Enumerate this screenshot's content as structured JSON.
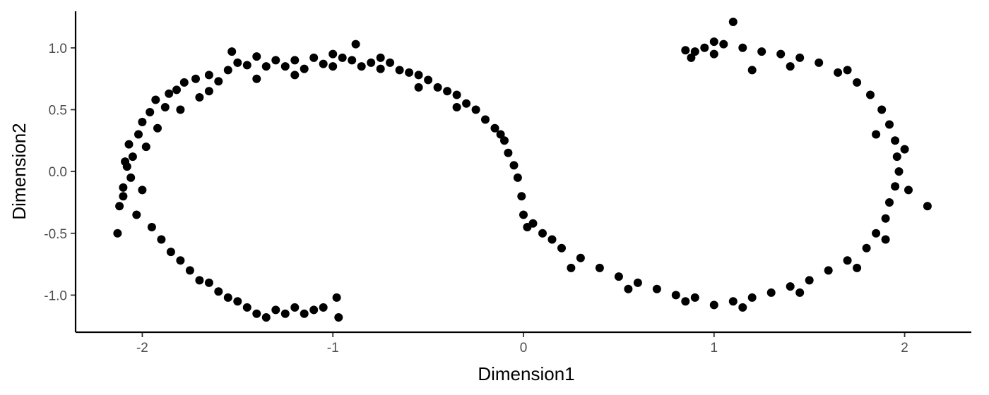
{
  "chart_data": {
    "type": "scatter",
    "title": "",
    "xlabel": "Dimension1",
    "ylabel": "Dimension2",
    "xlim": [
      -2.35,
      2.35
    ],
    "ylim": [
      -1.3,
      1.33
    ],
    "xticks": [
      -2,
      -1,
      0,
      1,
      2
    ],
    "xtick_labels": [
      "-2",
      "-1",
      "0",
      "1",
      "2"
    ],
    "yticks": [
      -1.0,
      -0.5,
      0.0,
      0.5,
      1.0
    ],
    "ytick_labels": [
      "-1.0",
      "-0.5",
      "0.0",
      "0.5",
      "1.0"
    ],
    "grid": false,
    "legend": "none",
    "point_color": "#000000",
    "axis_color": "#000000",
    "tick_label_color": "#4d4d4d",
    "points": [
      {
        "x": -2.1,
        "y": -0.13
      },
      {
        "x": -2.12,
        "y": -0.28
      },
      {
        "x": -2.06,
        "y": -0.05
      },
      {
        "x": -2.08,
        "y": 0.04
      },
      {
        "x": -2.05,
        "y": 0.12
      },
      {
        "x": -2.07,
        "y": 0.22
      },
      {
        "x": -2.02,
        "y": 0.3
      },
      {
        "x": -2.0,
        "y": 0.4
      },
      {
        "x": -1.96,
        "y": 0.48
      },
      {
        "x": -1.93,
        "y": 0.58
      },
      {
        "x": -1.88,
        "y": 0.52
      },
      {
        "x": -1.86,
        "y": 0.63
      },
      {
        "x": -1.82,
        "y": 0.66
      },
      {
        "x": -1.78,
        "y": 0.72
      },
      {
        "x": -1.72,
        "y": 0.75
      },
      {
        "x": -1.7,
        "y": 0.6
      },
      {
        "x": -1.65,
        "y": 0.78
      },
      {
        "x": -1.6,
        "y": 0.73
      },
      {
        "x": -1.55,
        "y": 0.82
      },
      {
        "x": -1.5,
        "y": 0.88
      },
      {
        "x": -1.53,
        "y": 0.97
      },
      {
        "x": -1.45,
        "y": 0.86
      },
      {
        "x": -1.4,
        "y": 0.93
      },
      {
        "x": -1.35,
        "y": 0.85
      },
      {
        "x": -1.3,
        "y": 0.9
      },
      {
        "x": -1.25,
        "y": 0.85
      },
      {
        "x": -1.2,
        "y": 0.9
      },
      {
        "x": -1.15,
        "y": 0.83
      },
      {
        "x": -1.1,
        "y": 0.92
      },
      {
        "x": -1.05,
        "y": 0.87
      },
      {
        "x": -1.0,
        "y": 0.85
      },
      {
        "x": -0.95,
        "y": 0.92
      },
      {
        "x": -0.9,
        "y": 0.9
      },
      {
        "x": -0.88,
        "y": 1.03
      },
      {
        "x": -0.85,
        "y": 0.85
      },
      {
        "x": -0.8,
        "y": 0.88
      },
      {
        "x": -0.75,
        "y": 0.83
      },
      {
        "x": -0.7,
        "y": 0.88
      },
      {
        "x": -0.65,
        "y": 0.82
      },
      {
        "x": -0.6,
        "y": 0.8
      },
      {
        "x": -0.55,
        "y": 0.78
      },
      {
        "x": -0.5,
        "y": 0.74
      },
      {
        "x": -0.45,
        "y": 0.68
      },
      {
        "x": -0.4,
        "y": 0.65
      },
      {
        "x": -0.35,
        "y": 0.62
      },
      {
        "x": -0.3,
        "y": 0.55
      },
      {
        "x": -0.25,
        "y": 0.5
      },
      {
        "x": -0.2,
        "y": 0.42
      },
      {
        "x": -0.15,
        "y": 0.35
      },
      {
        "x": -0.1,
        "y": 0.25
      },
      {
        "x": -0.08,
        "y": 0.15
      },
      {
        "x": -0.05,
        "y": 0.05
      },
      {
        "x": -0.03,
        "y": -0.05
      },
      {
        "x": -0.01,
        "y": -0.2
      },
      {
        "x": 0.0,
        "y": -0.35
      },
      {
        "x": 0.05,
        "y": -0.42
      },
      {
        "x": 0.1,
        "y": -0.5
      },
      {
        "x": 0.15,
        "y": -0.55
      },
      {
        "x": 0.2,
        "y": -0.62
      },
      {
        "x": 0.3,
        "y": -0.7
      },
      {
        "x": 0.4,
        "y": -0.78
      },
      {
        "x": 0.5,
        "y": -0.85
      },
      {
        "x": 0.6,
        "y": -0.9
      },
      {
        "x": 0.7,
        "y": -0.95
      },
      {
        "x": 0.8,
        "y": -1.0
      },
      {
        "x": 0.9,
        "y": -1.02
      },
      {
        "x": 1.0,
        "y": -1.08
      },
      {
        "x": 1.1,
        "y": -1.05
      },
      {
        "x": 1.2,
        "y": -1.02
      },
      {
        "x": 1.3,
        "y": -0.98
      },
      {
        "x": 1.4,
        "y": -0.93
      },
      {
        "x": 1.5,
        "y": -0.88
      },
      {
        "x": 1.6,
        "y": -0.8
      },
      {
        "x": 1.7,
        "y": -0.72
      },
      {
        "x": 1.8,
        "y": -0.62
      },
      {
        "x": 1.85,
        "y": -0.5
      },
      {
        "x": 1.9,
        "y": -0.38
      },
      {
        "x": 1.92,
        "y": -0.25
      },
      {
        "x": 1.95,
        "y": -0.12
      },
      {
        "x": 1.97,
        "y": 0.0
      },
      {
        "x": 1.96,
        "y": 0.12
      },
      {
        "x": 1.95,
        "y": 0.25
      },
      {
        "x": 1.92,
        "y": 0.38
      },
      {
        "x": 1.88,
        "y": 0.5
      },
      {
        "x": 1.82,
        "y": 0.62
      },
      {
        "x": 1.75,
        "y": 0.72
      },
      {
        "x": 1.65,
        "y": 0.8
      },
      {
        "x": 1.55,
        "y": 0.88
      },
      {
        "x": 1.45,
        "y": 0.92
      },
      {
        "x": 1.35,
        "y": 0.95
      },
      {
        "x": 1.25,
        "y": 0.97
      },
      {
        "x": 1.15,
        "y": 1.0
      },
      {
        "x": 1.1,
        "y": 1.21
      },
      {
        "x": 1.05,
        "y": 1.03
      },
      {
        "x": 1.0,
        "y": 1.05
      },
      {
        "x": 0.95,
        "y": 1.0
      },
      {
        "x": 0.9,
        "y": 0.97
      },
      {
        "x": 0.85,
        "y": 0.98
      },
      {
        "x": -1.95,
        "y": -0.45
      },
      {
        "x": -1.9,
        "y": -0.55
      },
      {
        "x": -1.85,
        "y": -0.65
      },
      {
        "x": -1.8,
        "y": -0.72
      },
      {
        "x": -1.75,
        "y": -0.8
      },
      {
        "x": -1.7,
        "y": -0.88
      },
      {
        "x": -1.65,
        "y": -0.9
      },
      {
        "x": -1.6,
        "y": -0.97
      },
      {
        "x": -1.55,
        "y": -1.02
      },
      {
        "x": -1.5,
        "y": -1.05
      },
      {
        "x": -1.45,
        "y": -1.1
      },
      {
        "x": -1.4,
        "y": -1.15
      },
      {
        "x": -1.35,
        "y": -1.18
      },
      {
        "x": -1.3,
        "y": -1.12
      },
      {
        "x": -1.25,
        "y": -1.15
      },
      {
        "x": -1.2,
        "y": -1.1
      },
      {
        "x": -1.15,
        "y": -1.15
      },
      {
        "x": -1.1,
        "y": -1.12
      },
      {
        "x": -1.05,
        "y": -1.1
      },
      {
        "x": -0.98,
        "y": -1.02
      },
      {
        "x": -0.97,
        "y": -1.18
      },
      {
        "x": -2.13,
        "y": -0.5
      },
      {
        "x": -2.1,
        "y": -0.2
      },
      {
        "x": -2.09,
        "y": 0.08
      },
      {
        "x": -2.03,
        "y": -0.35
      },
      {
        "x": -2.0,
        "y": -0.15
      },
      {
        "x": -1.98,
        "y": 0.2
      },
      {
        "x": -1.92,
        "y": 0.35
      },
      {
        "x": -1.8,
        "y": 0.5
      },
      {
        "x": -1.65,
        "y": 0.65
      },
      {
        "x": -1.4,
        "y": 0.75
      },
      {
        "x": -1.2,
        "y": 0.78
      },
      {
        "x": -1.0,
        "y": 0.95
      },
      {
        "x": -0.75,
        "y": 0.92
      },
      {
        "x": -0.55,
        "y": 0.68
      },
      {
        "x": -0.35,
        "y": 0.52
      },
      {
        "x": -0.12,
        "y": 0.3
      },
      {
        "x": 0.02,
        "y": -0.45
      },
      {
        "x": 0.25,
        "y": -0.78
      },
      {
        "x": 0.55,
        "y": -0.95
      },
      {
        "x": 0.85,
        "y": -1.05
      },
      {
        "x": 1.15,
        "y": -1.1
      },
      {
        "x": 1.45,
        "y": -0.98
      },
      {
        "x": 1.75,
        "y": -0.78
      },
      {
        "x": 1.9,
        "y": -0.55
      },
      {
        "x": 2.12,
        "y": -0.28
      },
      {
        "x": 2.02,
        "y": -0.15
      },
      {
        "x": 2.0,
        "y": 0.18
      },
      {
        "x": 1.85,
        "y": 0.3
      },
      {
        "x": 1.7,
        "y": 0.82
      },
      {
        "x": 1.4,
        "y": 0.85
      },
      {
        "x": 1.2,
        "y": 0.82
      },
      {
        "x": 1.0,
        "y": 0.95
      },
      {
        "x": 0.88,
        "y": 0.92
      }
    ]
  }
}
